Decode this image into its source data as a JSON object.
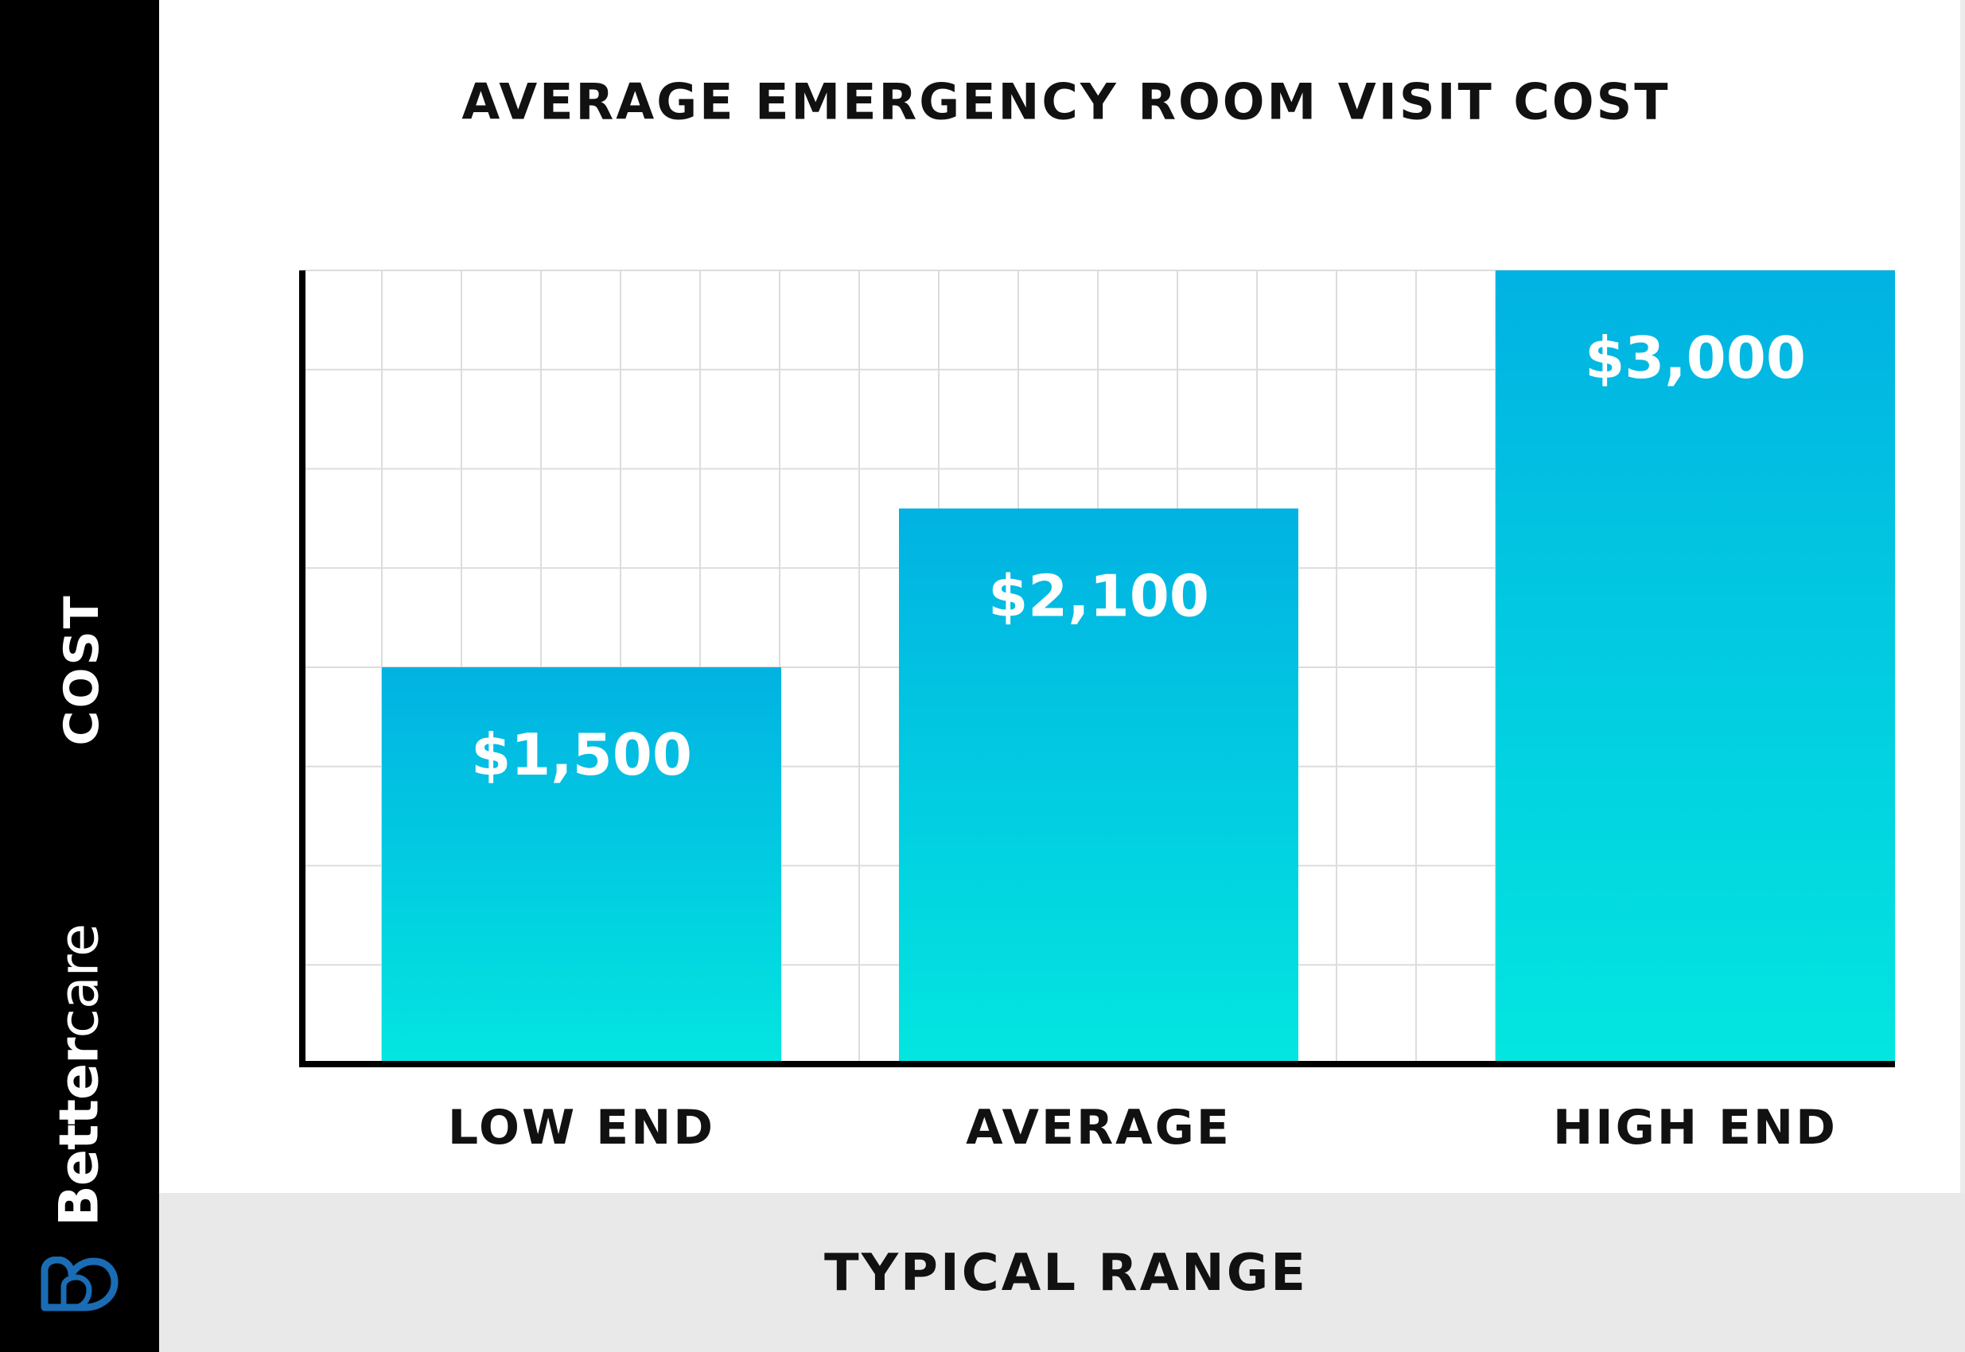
{
  "colors": {
    "bar_top": "#01b2e2",
    "bar_bottom": "#03e6e0",
    "grid": "#dcdcdc",
    "axis": "#000000",
    "sidebar": "#000000",
    "band": "#e9e9e9",
    "logo_blue": "#1a6cb5"
  },
  "brand": {
    "name_bold": "Better",
    "name_light": "care",
    "logo_icon": "heart-b-logo-icon"
  },
  "chart_data": {
    "type": "bar",
    "title": "AVERAGE EMERGENCY ROOM VISIT COST",
    "xlabel": "TYPICAL RANGE",
    "ylabel": "COST",
    "categories": [
      "LOW END",
      "AVERAGE",
      "HIGH END"
    ],
    "values": [
      1500,
      2100,
      3000
    ],
    "value_labels": [
      "$1,500",
      "$2,100",
      "$3,000"
    ],
    "ylim": [
      0,
      3000
    ],
    "grid": true,
    "legend": "none"
  }
}
